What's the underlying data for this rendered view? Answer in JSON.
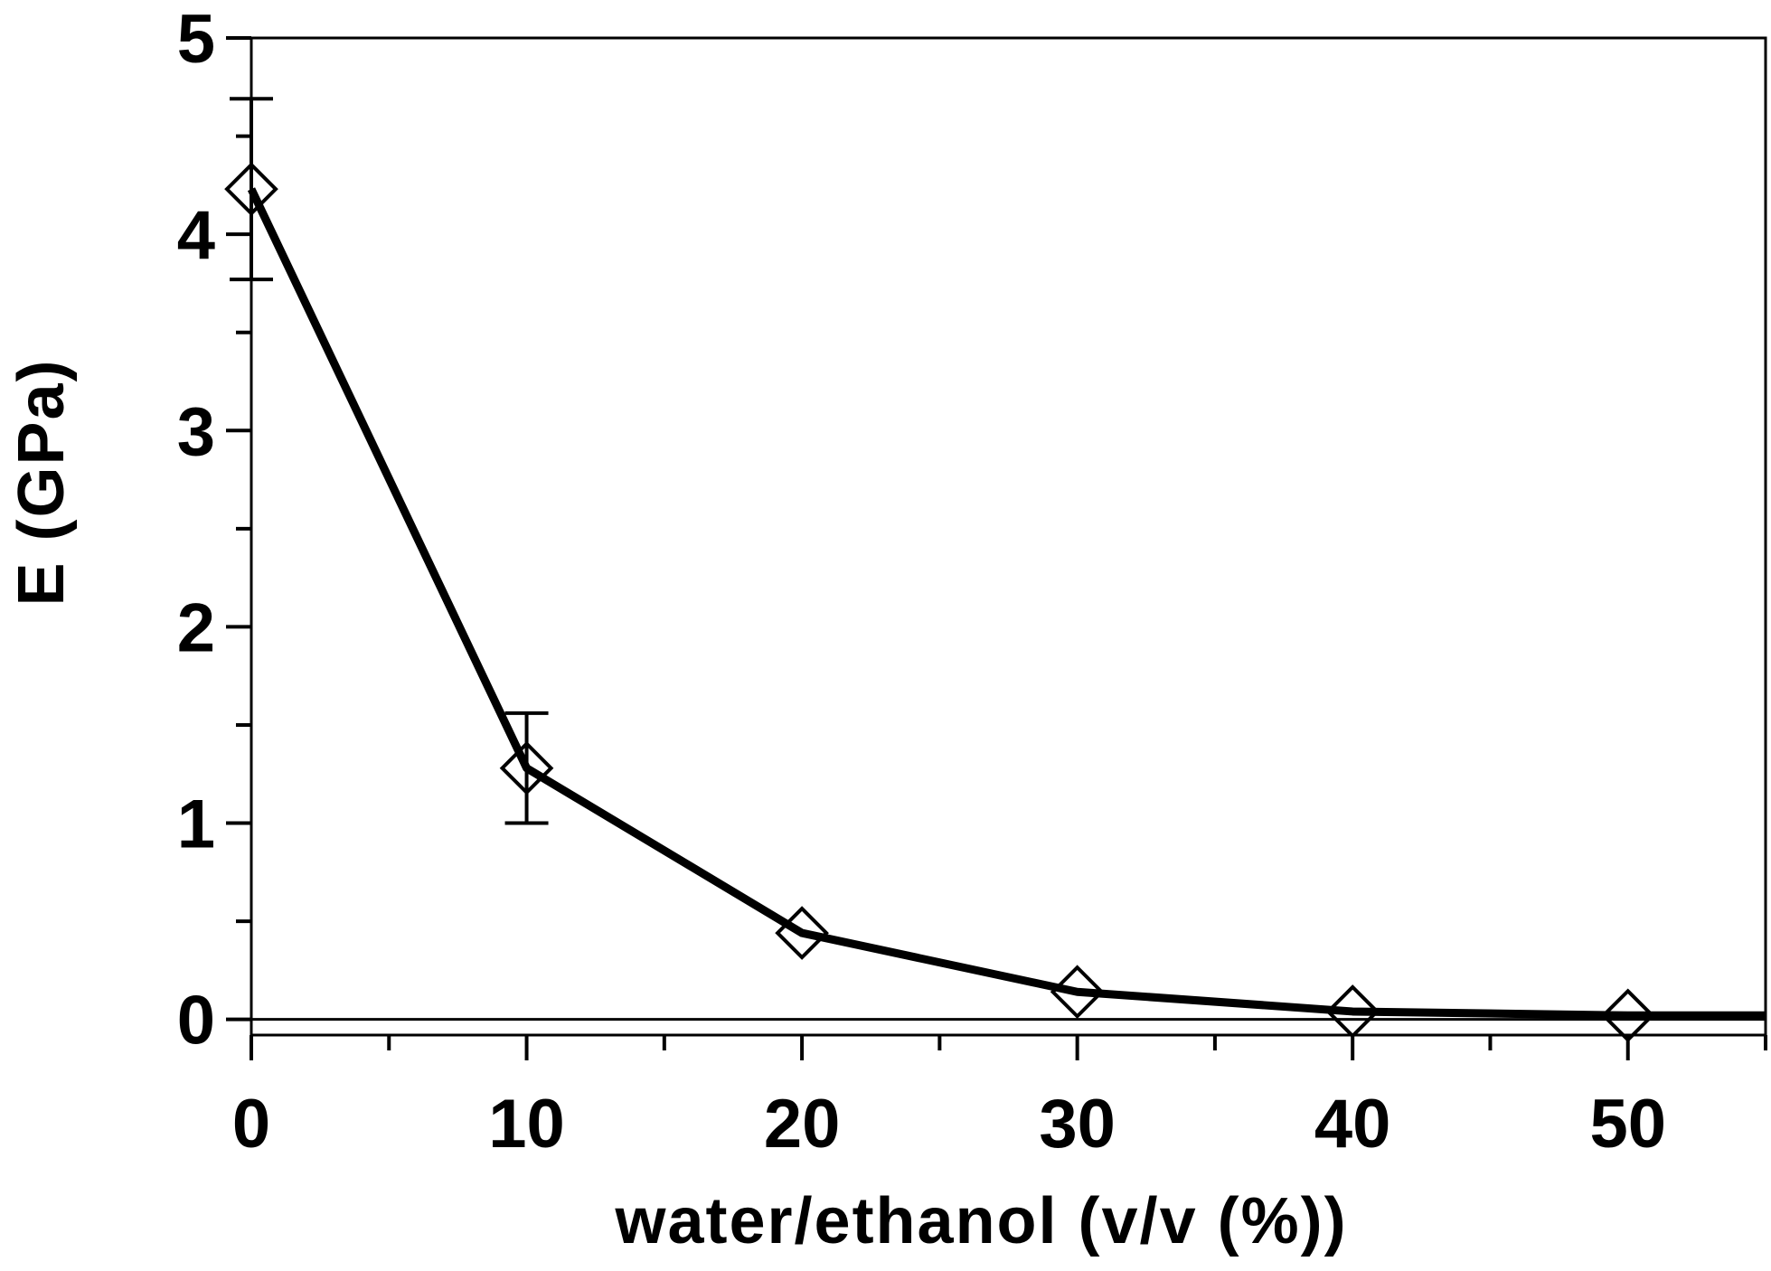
{
  "chart_data": {
    "type": "line",
    "title": "",
    "xlabel": "water/ethanol (v/v (%))",
    "ylabel": "E (GPa)",
    "xlim": [
      0,
      55
    ],
    "ylim": [
      -0.08,
      5
    ],
    "x_ticks": [
      0,
      10,
      20,
      30,
      40,
      50
    ],
    "y_ticks": [
      0,
      1,
      2,
      3,
      4,
      5
    ],
    "x_minor_ticks": [
      5,
      15,
      25,
      35,
      45,
      55
    ],
    "y_minor_ticks": [
      0.5,
      1.5,
      2.5,
      3.5,
      4.5
    ],
    "grid": false,
    "legend": "none",
    "marker": "open-diamond",
    "color": "#000000",
    "series": [
      {
        "x": [
          0,
          10,
          20,
          30,
          40,
          50,
          55
        ],
        "y": [
          4.23,
          1.28,
          0.44,
          0.14,
          0.04,
          0.02,
          0.02
        ],
        "markers": [
          true,
          true,
          true,
          true,
          true,
          true,
          false
        ],
        "error": [
          0.46,
          0.28,
          0,
          0,
          0,
          0,
          0
        ]
      }
    ]
  }
}
